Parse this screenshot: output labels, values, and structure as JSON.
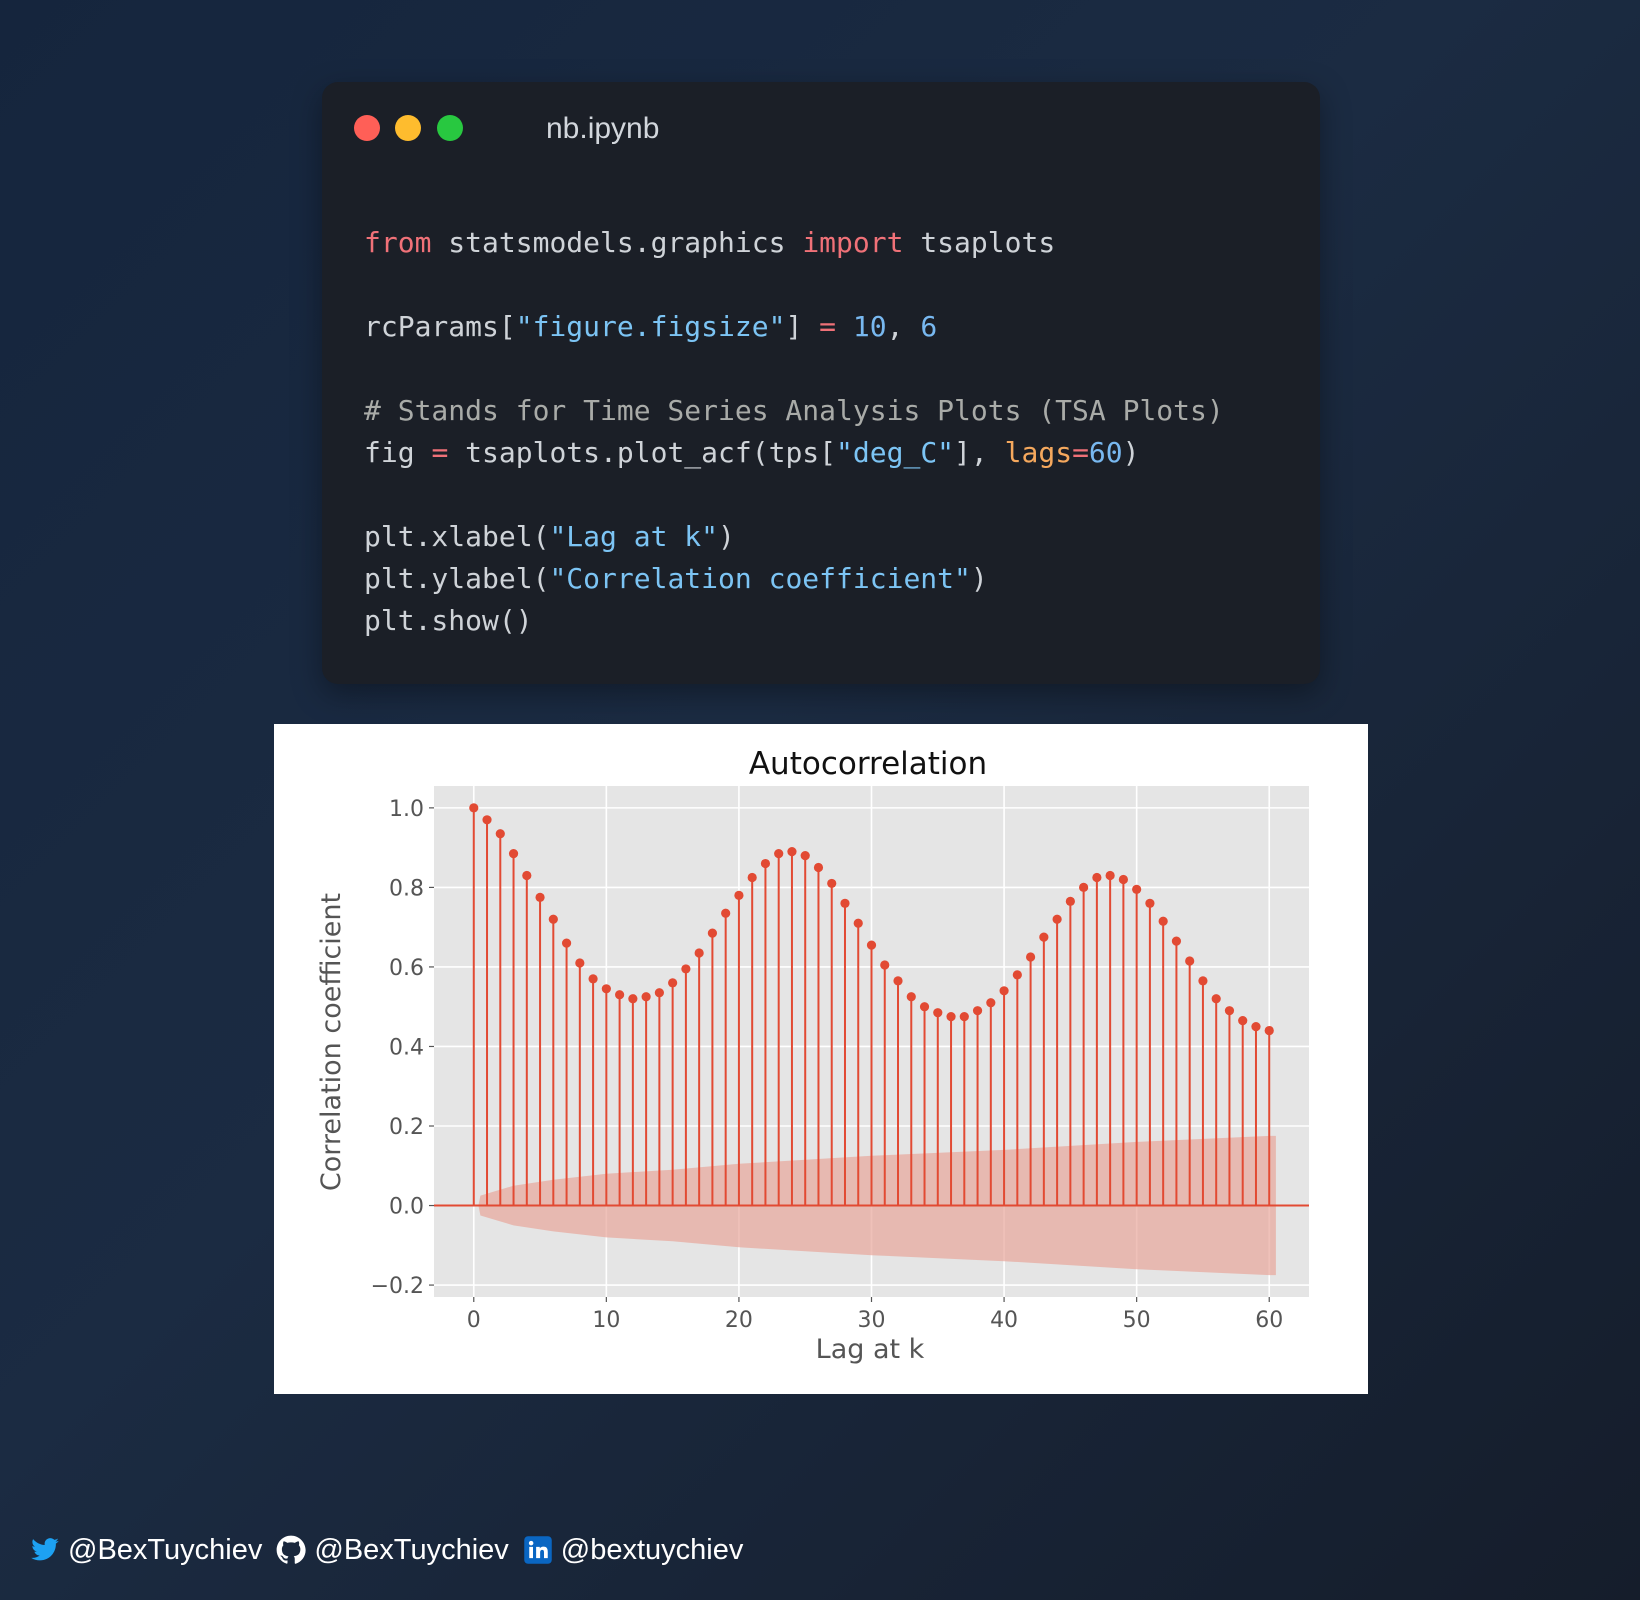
{
  "window": {
    "title": "nb.ipynb",
    "controls": [
      "close",
      "minimize",
      "maximize"
    ]
  },
  "code": {
    "line1": {
      "kw1": "from",
      "mod": " statsmodels.graphics ",
      "kw2": "import",
      "name": " tsaplots"
    },
    "line2": {
      "a": "rcParams[",
      "s": "\"figure.figsize\"",
      "b": "] ",
      "op": "=",
      "sp": " ",
      "n1": "10",
      "c": ", ",
      "n2": "6"
    },
    "line3": {
      "comment": "# Stands for Time Series Analysis Plots (TSA Plots)"
    },
    "line4": {
      "a": "fig ",
      "op": "=",
      "b": " tsaplots.plot_acf(tps[",
      "s": "\"deg_C\"",
      "c": "], ",
      "p": "lags",
      "eq": "=",
      "n": "60",
      "d": ")"
    },
    "line5": {
      "a": "plt.xlabel(",
      "s": "\"Lag at k\"",
      "b": ")"
    },
    "line6": {
      "a": "plt.ylabel(",
      "s": "\"Correlation coefficient\"",
      "b": ")"
    },
    "line7": {
      "a": "plt.show()"
    }
  },
  "chart_data": {
    "type": "stem",
    "title": "Autocorrelation",
    "xlabel": "Lag at k",
    "ylabel": "Correlation coefficient",
    "xlim": [
      -3,
      63
    ],
    "ylim": [
      -0.23,
      1.055
    ],
    "xticks": [
      0,
      10,
      20,
      30,
      40,
      50,
      60
    ],
    "xtick_labels": [
      "0",
      "10",
      "20",
      "30",
      "40",
      "50",
      "60"
    ],
    "yticks": [
      -0.2,
      0.0,
      0.2,
      0.4,
      0.6,
      0.8,
      1.0
    ],
    "ytick_labels": [
      "−0.2",
      "0.0",
      "0.2",
      "0.4",
      "0.6",
      "0.8",
      "1.0"
    ],
    "grid": true,
    "color": "#e24a33",
    "confidence_band_color": "#e8a69b",
    "plot_background": "#e5e5e5",
    "x": [
      0,
      1,
      2,
      3,
      4,
      5,
      6,
      7,
      8,
      9,
      10,
      11,
      12,
      13,
      14,
      15,
      16,
      17,
      18,
      19,
      20,
      21,
      22,
      23,
      24,
      25,
      26,
      27,
      28,
      29,
      30,
      31,
      32,
      33,
      34,
      35,
      36,
      37,
      38,
      39,
      40,
      41,
      42,
      43,
      44,
      45,
      46,
      47,
      48,
      49,
      50,
      51,
      52,
      53,
      54,
      55,
      56,
      57,
      58,
      59,
      60
    ],
    "values": [
      1.0,
      0.97,
      0.935,
      0.885,
      0.83,
      0.775,
      0.72,
      0.66,
      0.61,
      0.57,
      0.545,
      0.53,
      0.52,
      0.525,
      0.535,
      0.56,
      0.595,
      0.635,
      0.685,
      0.735,
      0.78,
      0.825,
      0.86,
      0.885,
      0.89,
      0.88,
      0.85,
      0.81,
      0.76,
      0.71,
      0.655,
      0.605,
      0.565,
      0.525,
      0.5,
      0.485,
      0.475,
      0.475,
      0.49,
      0.51,
      0.54,
      0.58,
      0.625,
      0.675,
      0.72,
      0.765,
      0.8,
      0.825,
      0.83,
      0.82,
      0.795,
      0.76,
      0.715,
      0.665,
      0.615,
      0.565,
      0.52,
      0.49,
      0.465,
      0.45,
      0.44
    ],
    "confidence_upper": [
      [
        0.35,
        0.0
      ],
      [
        0.5,
        0.025
      ],
      [
        3,
        0.05
      ],
      [
        6,
        0.065
      ],
      [
        10,
        0.08
      ],
      [
        15,
        0.09
      ],
      [
        20,
        0.105
      ],
      [
        30,
        0.125
      ],
      [
        40,
        0.14
      ],
      [
        50,
        0.16
      ],
      [
        60,
        0.175
      ],
      [
        60.5,
        0.175
      ]
    ],
    "confidence_lower": [
      [
        0.35,
        0.0
      ],
      [
        0.5,
        -0.025
      ],
      [
        3,
        -0.05
      ],
      [
        6,
        -0.065
      ],
      [
        10,
        -0.08
      ],
      [
        15,
        -0.09
      ],
      [
        20,
        -0.105
      ],
      [
        30,
        -0.125
      ],
      [
        40,
        -0.14
      ],
      [
        50,
        -0.16
      ],
      [
        60,
        -0.175
      ],
      [
        60.5,
        -0.175
      ]
    ]
  },
  "footer": {
    "twitter": "@BexTuychiev",
    "github": "@BexTuychiev",
    "linkedin": "@bextuychiev"
  }
}
